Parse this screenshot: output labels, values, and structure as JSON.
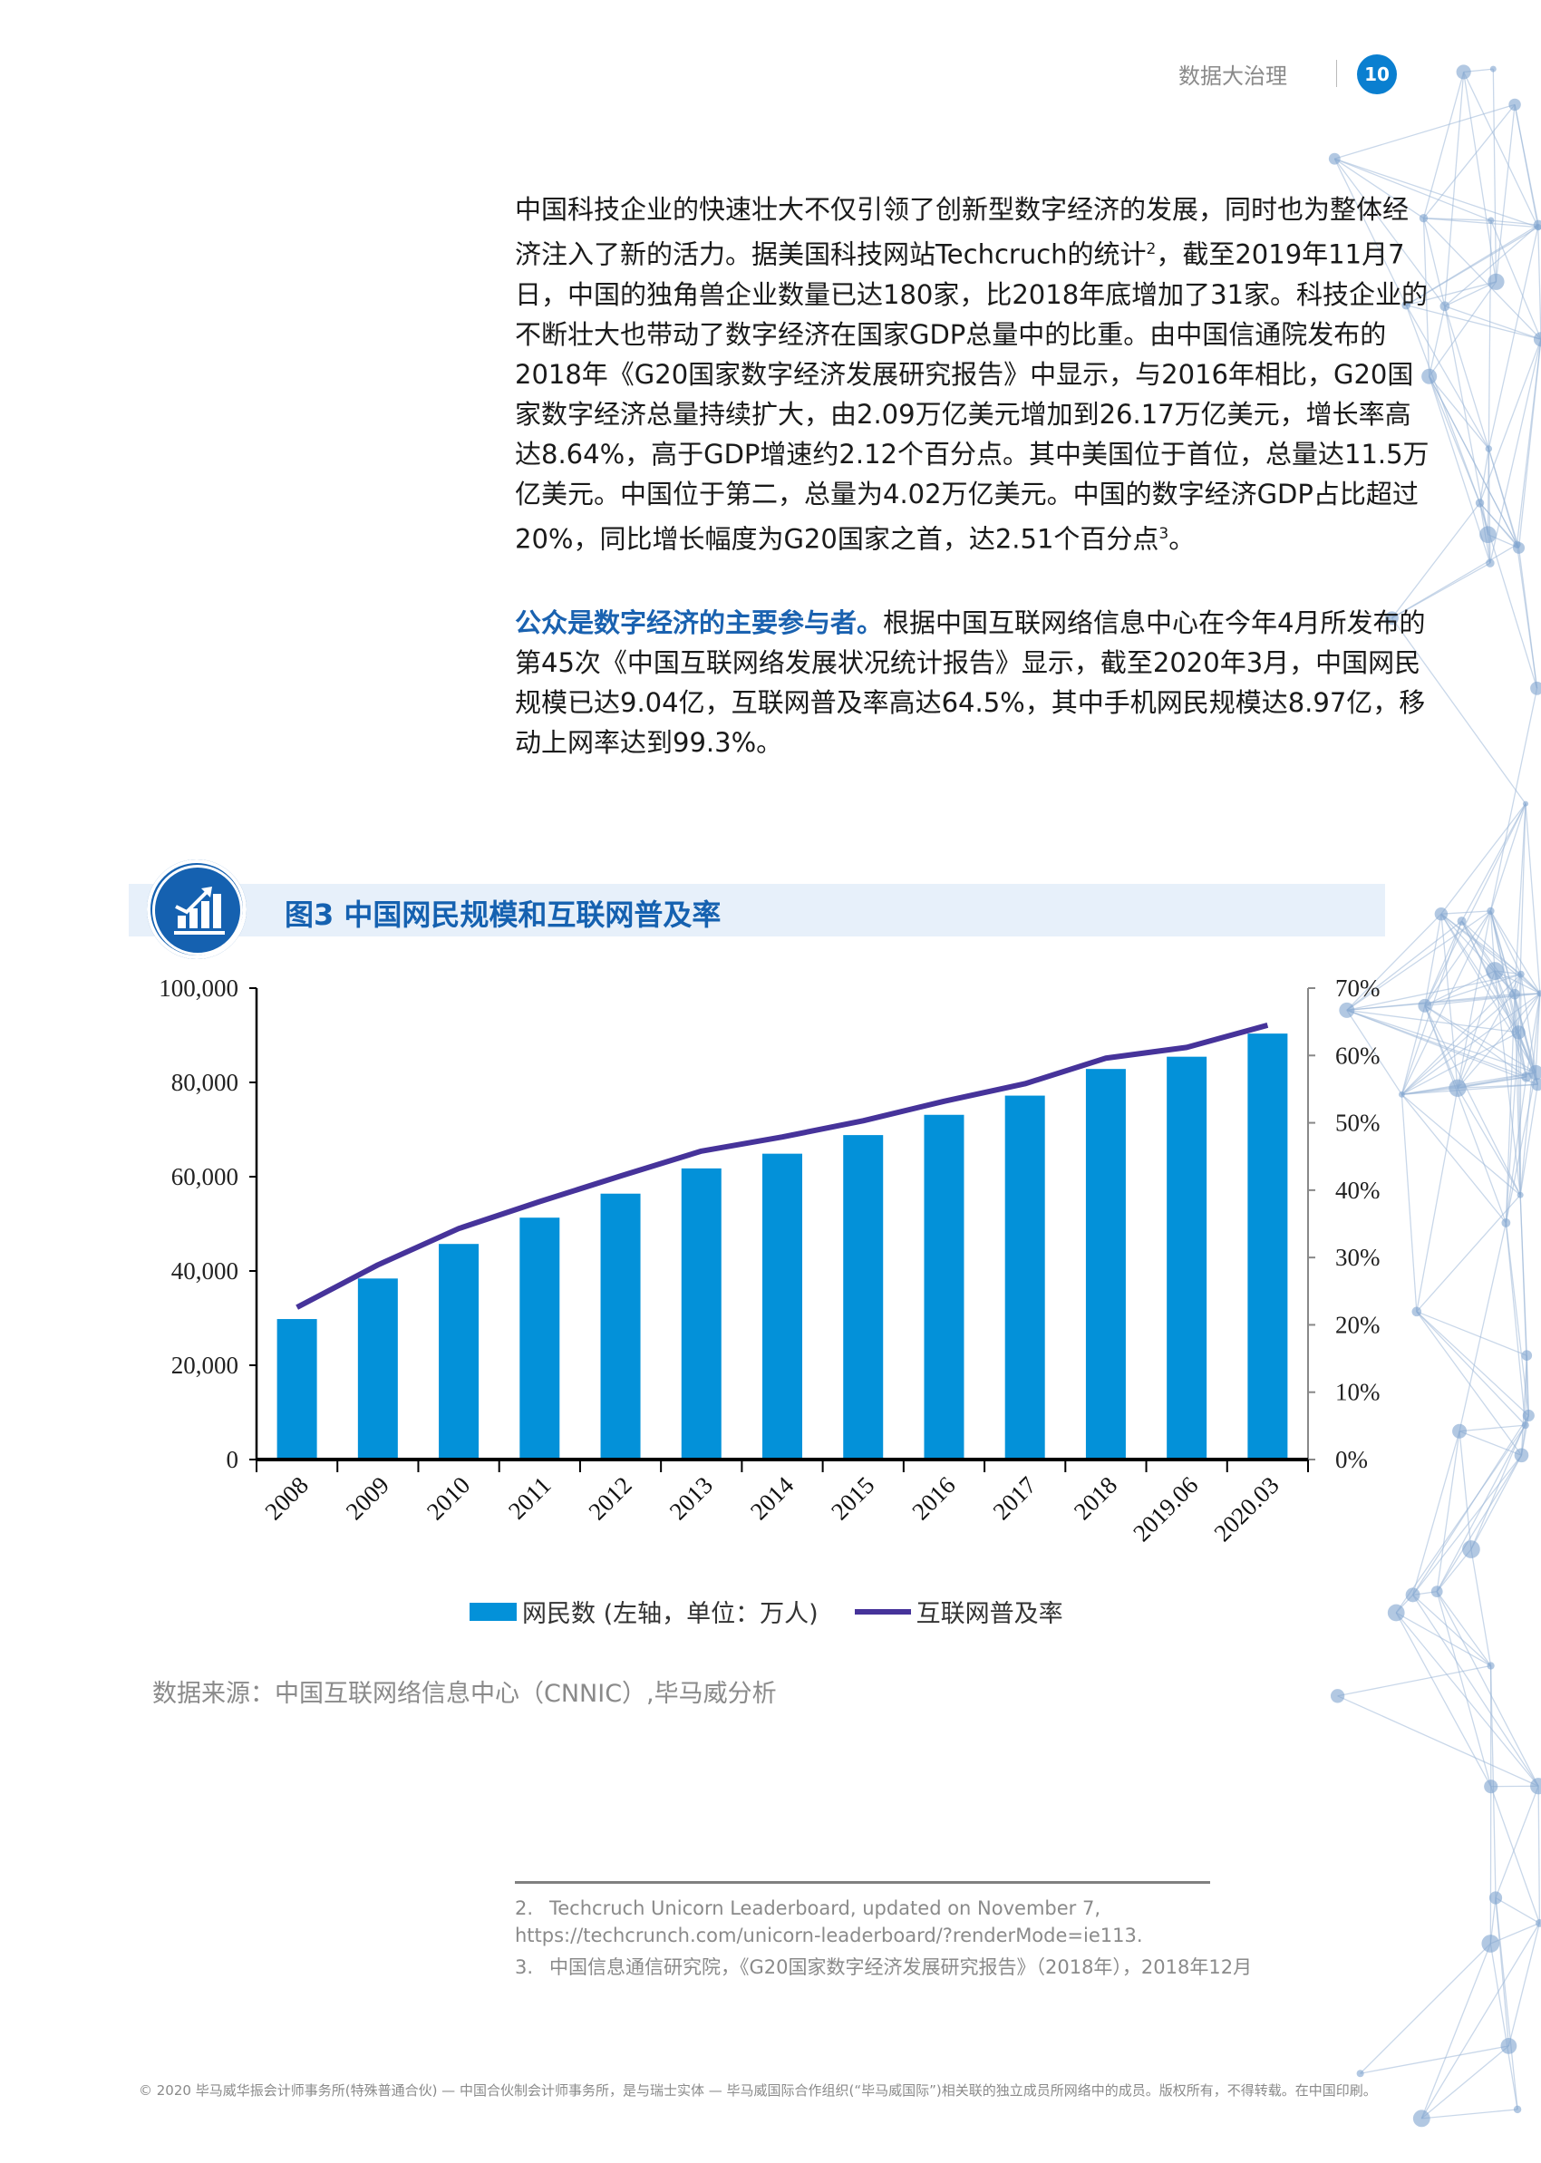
{
  "header": {
    "title": "数据大治理",
    "page_number": "10"
  },
  "paragraphs": [
    {
      "segments": [
        {
          "text": "中国科技企业的快速壮大不仅引领了创新型数字经济的发展，同时也为整体经济注入了新的活力。据美国科技网站Techcruch的统计"
        },
        {
          "text": "2",
          "sup": true
        },
        {
          "text": "，截至2019年11月7日，中国的独角兽企业数量已达180家，比2018年底增加了31家。科技企业的不断壮大也带动了数字经济在国家GDP总量中的比重。由中国信通院发布的2018年《G20国家数字经济发展研究报告》中显示，与2016年相比，G20国家数字经济总量持续扩大，由2.09万亿美元增加到26.17万亿美元，增长率高达8.64%，高于GDP增速约2.12个百分点。其中美国位于首位，总量达11.5万亿美元。中国位于第二，总量为4.02万亿美元。中国的数字经济GDP占比超过20%，同比增长幅度为G20国家之首，达2.51个百分点"
        },
        {
          "text": "3",
          "sup": true
        },
        {
          "text": "。"
        }
      ]
    },
    {
      "highlight": "公众是数字经济的主要参与者。",
      "text": "根据中国互联网络信息中心在今年4月所发布的第45次《中国互联网络发展状况统计报告》显示，截至2020年3月，中国网民规模已达9.04亿，互联网普及率高达64.5%，其中手机网民规模达8.97亿，移动上网率达到99.3%。"
    }
  ],
  "figure": {
    "title": "图3  中国网民规模和互联网普及率",
    "icon": "bar-chart-growth-icon"
  },
  "chart_data": {
    "type": "bar+line",
    "categories": [
      "2008",
      "2009",
      "2010",
      "2011",
      "2012",
      "2013",
      "2014",
      "2015",
      "2016",
      "2017",
      "2018",
      "2019.06",
      "2020.03"
    ],
    "series": [
      {
        "name": "网民数 (左轴，单位：万人)",
        "type": "bar",
        "axis": "left",
        "color": "#0391d9",
        "values": [
          29800,
          38400,
          45730,
          51310,
          56400,
          61758,
          64875,
          68826,
          73125,
          77198,
          82851,
          85449,
          90359
        ]
      },
      {
        "name": "互联网普及率",
        "type": "line",
        "axis": "right",
        "color": "#46339a",
        "values": [
          22.6,
          28.9,
          34.3,
          38.3,
          42.1,
          45.8,
          47.9,
          50.3,
          53.2,
          55.8,
          59.6,
          61.2,
          64.5
        ]
      }
    ],
    "left_axis": {
      "min": 0,
      "max": 100000,
      "ticks": [
        "0",
        "20,000",
        "40,000",
        "60,000",
        "80,000",
        "100,000"
      ]
    },
    "right_axis": {
      "min": 0,
      "max": 70,
      "ticks": [
        "0%",
        "10%",
        "20%",
        "30%",
        "40%",
        "50%",
        "60%",
        "70%"
      ]
    },
    "grid": false,
    "legend_position": "bottom"
  },
  "source": "数据来源：中国互联网络信息中心（CNNIC）,毕马威分析",
  "footnotes": [
    {
      "num": "2.",
      "text": "Techcruch Unicorn Leaderboard, updated on November 7, https://techcrunch.com/unicorn-leaderboard/?renderMode=ie113."
    },
    {
      "num": "3.",
      "text": "中国信息通信研究院，《G20国家数字经济发展研究报告》（2018年），2018年12月"
    }
  ],
  "footer": "© 2020 毕马威华振会计师事务所(特殊普通合伙) — 中国合伙制会计师事务所，是与瑞士实体 — 毕马威国际合作组织(“毕马威国际”)相关联的独立成员所网络中的成员。版权所有，不得转载。在中国印刷。"
}
